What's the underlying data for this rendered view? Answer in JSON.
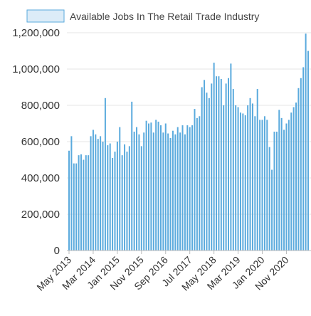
{
  "chart_data": {
    "type": "bar",
    "title": "",
    "xlabel": "",
    "ylabel": "",
    "ylim": [
      0,
      1200000
    ],
    "y_ticks": [
      "0",
      "200,000",
      "400,000",
      "600,000",
      "800,000",
      "1,000,000",
      "1,200,000"
    ],
    "x_tick_labels": [
      "May 2013",
      "Mar 2014",
      "Jan 2015",
      "Nov 2015",
      "Sep 2016",
      "Jul 2017",
      "May 2018",
      "Mar 2019",
      "Jan 2020",
      "Nov 2020"
    ],
    "x_start": "2013-05",
    "grid": true,
    "legend_position": "top",
    "series": [
      {
        "name": "Available Jobs In The Retail Trade Industry",
        "color": "#5aaadd",
        "values": [
          550000,
          630000,
          480000,
          480000,
          525000,
          530000,
          500000,
          525000,
          525000,
          630000,
          665000,
          640000,
          615000,
          630000,
          600000,
          840000,
          580000,
          590000,
          510000,
          545000,
          600000,
          680000,
          525000,
          585000,
          545000,
          575000,
          820000,
          655000,
          680000,
          640000,
          575000,
          650000,
          715000,
          700000,
          705000,
          650000,
          720000,
          710000,
          690000,
          650000,
          700000,
          645000,
          620000,
          660000,
          640000,
          680000,
          650000,
          690000,
          640000,
          690000,
          680000,
          690000,
          780000,
          730000,
          740000,
          900000,
          940000,
          870000,
          840000,
          920000,
          1035000,
          960000,
          960000,
          945000,
          800000,
          920000,
          950000,
          1030000,
          890000,
          800000,
          790000,
          760000,
          755000,
          745000,
          800000,
          840000,
          810000,
          740000,
          890000,
          720000,
          720000,
          740000,
          720000,
          570000,
          445000,
          655000,
          655000,
          775000,
          730000,
          665000,
          700000,
          720000,
          760000,
          790000,
          815000,
          895000,
          950000,
          1010000,
          1195000,
          1100000
        ]
      }
    ]
  }
}
